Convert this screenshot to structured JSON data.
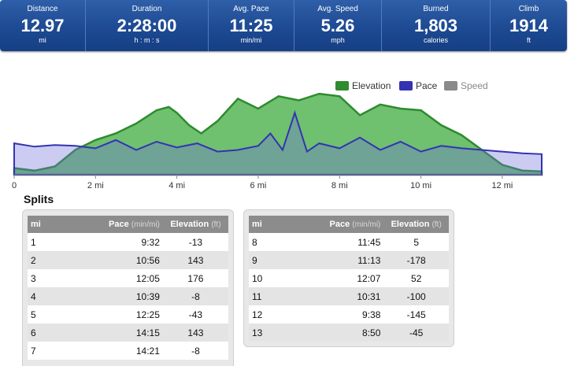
{
  "stats": [
    {
      "label": "Distance",
      "value": "12.97",
      "unit": "mi"
    },
    {
      "label": "Duration",
      "value": "2:28:00",
      "unit": "h : m : s"
    },
    {
      "label": "Avg. Pace",
      "value": "11:25",
      "unit": "min/mi"
    },
    {
      "label": "Avg. Speed",
      "value": "5.26",
      "unit": "mph"
    },
    {
      "label": "Burned",
      "value": "1,803",
      "unit": "calories"
    },
    {
      "label": "Climb",
      "value": "1914",
      "unit": "ft"
    }
  ],
  "colors": {
    "elevation": "#2e8b2e",
    "pace": "#3333b3",
    "speed": "#8a8a8a",
    "header_blue": "#1d4a93"
  },
  "chart_data": {
    "type": "area",
    "title": "",
    "xlabel": "",
    "ylabel": "",
    "legend": "top-right",
    "grid": false,
    "xlim": [
      0,
      12.97
    ],
    "x_ticks": [
      0,
      2,
      4,
      6,
      8,
      10,
      12
    ],
    "x_tick_labels": [
      "0",
      "2 mi",
      "4 mi",
      "6 mi",
      "8 mi",
      "10 mi",
      "12 mi"
    ],
    "legend_entries": [
      "Elevation",
      "Pace",
      "Speed"
    ],
    "series": [
      {
        "name": "Elevation",
        "x": [
          0,
          0.5,
          1,
          1.5,
          2,
          2.5,
          3,
          3.5,
          3.8,
          4,
          4.3,
          4.6,
          5,
          5.5,
          6,
          6.5,
          7,
          7.5,
          8,
          8.5,
          9,
          9.5,
          10,
          10.5,
          11,
          11.5,
          12,
          12.5,
          12.97
        ],
        "values": [
          0.08,
          0.05,
          0.1,
          0.3,
          0.42,
          0.5,
          0.62,
          0.78,
          0.82,
          0.75,
          0.6,
          0.5,
          0.65,
          0.92,
          0.8,
          0.95,
          0.9,
          0.98,
          0.95,
          0.72,
          0.85,
          0.8,
          0.78,
          0.6,
          0.48,
          0.3,
          0.12,
          0.05,
          0.04
        ]
      },
      {
        "name": "Pace",
        "x": [
          0,
          0.5,
          1,
          1.5,
          2,
          2.5,
          3,
          3.5,
          4,
          4.5,
          5,
          5.5,
          6,
          6.3,
          6.6,
          6.9,
          7.2,
          7.5,
          8,
          8.5,
          9,
          9.5,
          10,
          10.5,
          11,
          11.5,
          12,
          12.5,
          12.97
        ],
        "values": [
          0.38,
          0.34,
          0.36,
          0.35,
          0.32,
          0.42,
          0.3,
          0.4,
          0.33,
          0.38,
          0.28,
          0.3,
          0.35,
          0.5,
          0.3,
          0.75,
          0.28,
          0.38,
          0.32,
          0.45,
          0.3,
          0.4,
          0.28,
          0.35,
          0.32,
          0.3,
          0.28,
          0.26,
          0.25
        ]
      }
    ]
  },
  "splits": {
    "title": "Splits",
    "headers": {
      "mi": "mi",
      "pace": "Pace",
      "pace_unit": "(min/mi)",
      "elevation": "Elevation",
      "elevation_unit": "(ft)"
    },
    "left": [
      {
        "mi": "1",
        "pace": "9:32",
        "elev": "-13"
      },
      {
        "mi": "2",
        "pace": "10:56",
        "elev": "143"
      },
      {
        "mi": "3",
        "pace": "12:05",
        "elev": "176"
      },
      {
        "mi": "4",
        "pace": "10:39",
        "elev": "-8"
      },
      {
        "mi": "5",
        "pace": "12:25",
        "elev": "-43"
      },
      {
        "mi": "6",
        "pace": "14:15",
        "elev": "143"
      },
      {
        "mi": "7",
        "pace": "14:21",
        "elev": "-8"
      }
    ],
    "right": [
      {
        "mi": "8",
        "pace": "11:45",
        "elev": "5"
      },
      {
        "mi": "9",
        "pace": "11:13",
        "elev": "-178"
      },
      {
        "mi": "10",
        "pace": "12:07",
        "elev": "52"
      },
      {
        "mi": "11",
        "pace": "10:31",
        "elev": "-100"
      },
      {
        "mi": "12",
        "pace": "9:38",
        "elev": "-145"
      },
      {
        "mi": "13",
        "pace": "8:50",
        "elev": "-45"
      }
    ]
  }
}
